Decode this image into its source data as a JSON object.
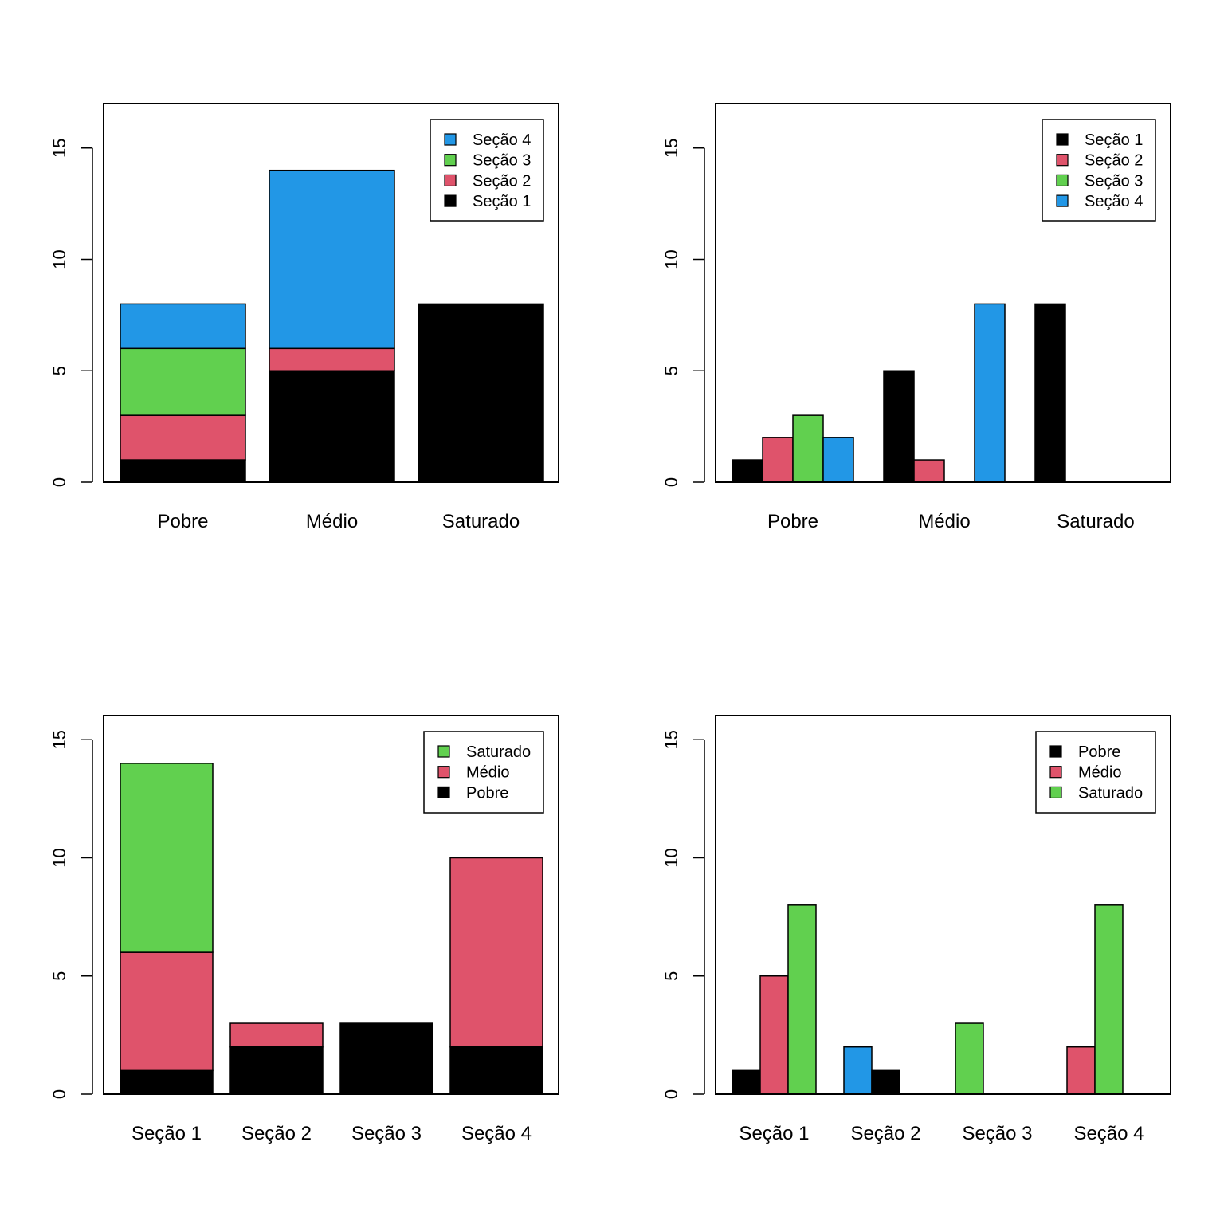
{
  "chart_data": [
    {
      "type": "bar",
      "mode": "stacked",
      "categories": [
        "Pobre",
        "Médio",
        "Saturado"
      ],
      "series": [
        {
          "name": "Seção 1",
          "color": "#000000",
          "values": [
            1,
            5,
            8
          ]
        },
        {
          "name": "Seção 2",
          "color": "#DF536B",
          "values": [
            2,
            1,
            0
          ]
        },
        {
          "name": "Seção 3",
          "color": "#61D04F",
          "values": [
            3,
            0,
            0
          ]
        },
        {
          "name": "Seção 4",
          "color": "#2297E6",
          "values": [
            2,
            8,
            0
          ]
        }
      ],
      "legend_order": "reversed",
      "legend_position": "top-right",
      "ylim": [
        0,
        17
      ],
      "yticks": [
        0,
        5,
        10,
        15
      ],
      "title": "",
      "xlabel": "",
      "ylabel": ""
    },
    {
      "type": "bar",
      "mode": "grouped",
      "categories": [
        "Pobre",
        "Médio",
        "Saturado"
      ],
      "series": [
        {
          "name": "Seção 1",
          "color": "#000000",
          "values": [
            1,
            5,
            8
          ]
        },
        {
          "name": "Seção 2",
          "color": "#DF536B",
          "values": [
            2,
            1,
            0
          ]
        },
        {
          "name": "Seção 3",
          "color": "#61D04F",
          "values": [
            3,
            0,
            0
          ]
        },
        {
          "name": "Seção 4",
          "color": "#2297E6",
          "values": [
            2,
            8,
            0
          ]
        }
      ],
      "legend_order": "normal",
      "legend_position": "top-right",
      "ylim": [
        0,
        17
      ],
      "yticks": [
        0,
        5,
        10,
        15
      ],
      "title": "",
      "xlabel": "",
      "ylabel": ""
    },
    {
      "type": "bar",
      "mode": "stacked",
      "categories": [
        "Seção 1",
        "Seção 2",
        "Seção 3",
        "Seção 4"
      ],
      "series": [
        {
          "name": "Pobre",
          "color": "#000000",
          "values": [
            1,
            2,
            3,
            2
          ]
        },
        {
          "name": "Médio",
          "color": "#DF536B",
          "values": [
            5,
            1,
            0,
            8
          ]
        },
        {
          "name": "Saturado",
          "color": "#61D04F",
          "values": [
            8,
            0,
            0,
            0
          ]
        }
      ],
      "legend_order": "reversed",
      "legend_position": "top-right",
      "ylim": [
        0,
        16
      ],
      "yticks": [
        0,
        5,
        10,
        15
      ],
      "title": "",
      "xlabel": "",
      "ylabel": ""
    },
    {
      "type": "bar",
      "mode": "grouped",
      "categories": [
        "Seção 1",
        "Seção 2",
        "Seção 3",
        "Seção 4"
      ],
      "groups": [
        [
          {
            "color": "#000000",
            "value": 1
          },
          {
            "color": "#DF536B",
            "value": 5
          },
          {
            "color": "#61D04F",
            "value": 8
          }
        ],
        [
          {
            "color": "#2297E6",
            "value": 2
          },
          {
            "color": "#000000",
            "value": 1
          },
          {
            "color": "#DF536B",
            "value": 0
          }
        ],
        [
          {
            "color": "#61D04F",
            "value": 3
          },
          {
            "color": "#2297E6",
            "value": 0
          },
          {
            "color": "#000000",
            "value": 0
          }
        ],
        [
          {
            "color": "#DF536B",
            "value": 2
          },
          {
            "color": "#61D04F",
            "value": 8
          },
          {
            "color": "#2297E6",
            "value": 0
          }
        ]
      ],
      "legend": [
        {
          "name": "Pobre",
          "color": "#000000"
        },
        {
          "name": "Médio",
          "color": "#DF536B"
        },
        {
          "name": "Saturado",
          "color": "#61D04F"
        }
      ],
      "legend_position": "top-right",
      "ylim": [
        0,
        16
      ],
      "yticks": [
        0,
        5,
        10,
        15
      ],
      "title": "",
      "xlabel": "",
      "ylabel": ""
    }
  ]
}
